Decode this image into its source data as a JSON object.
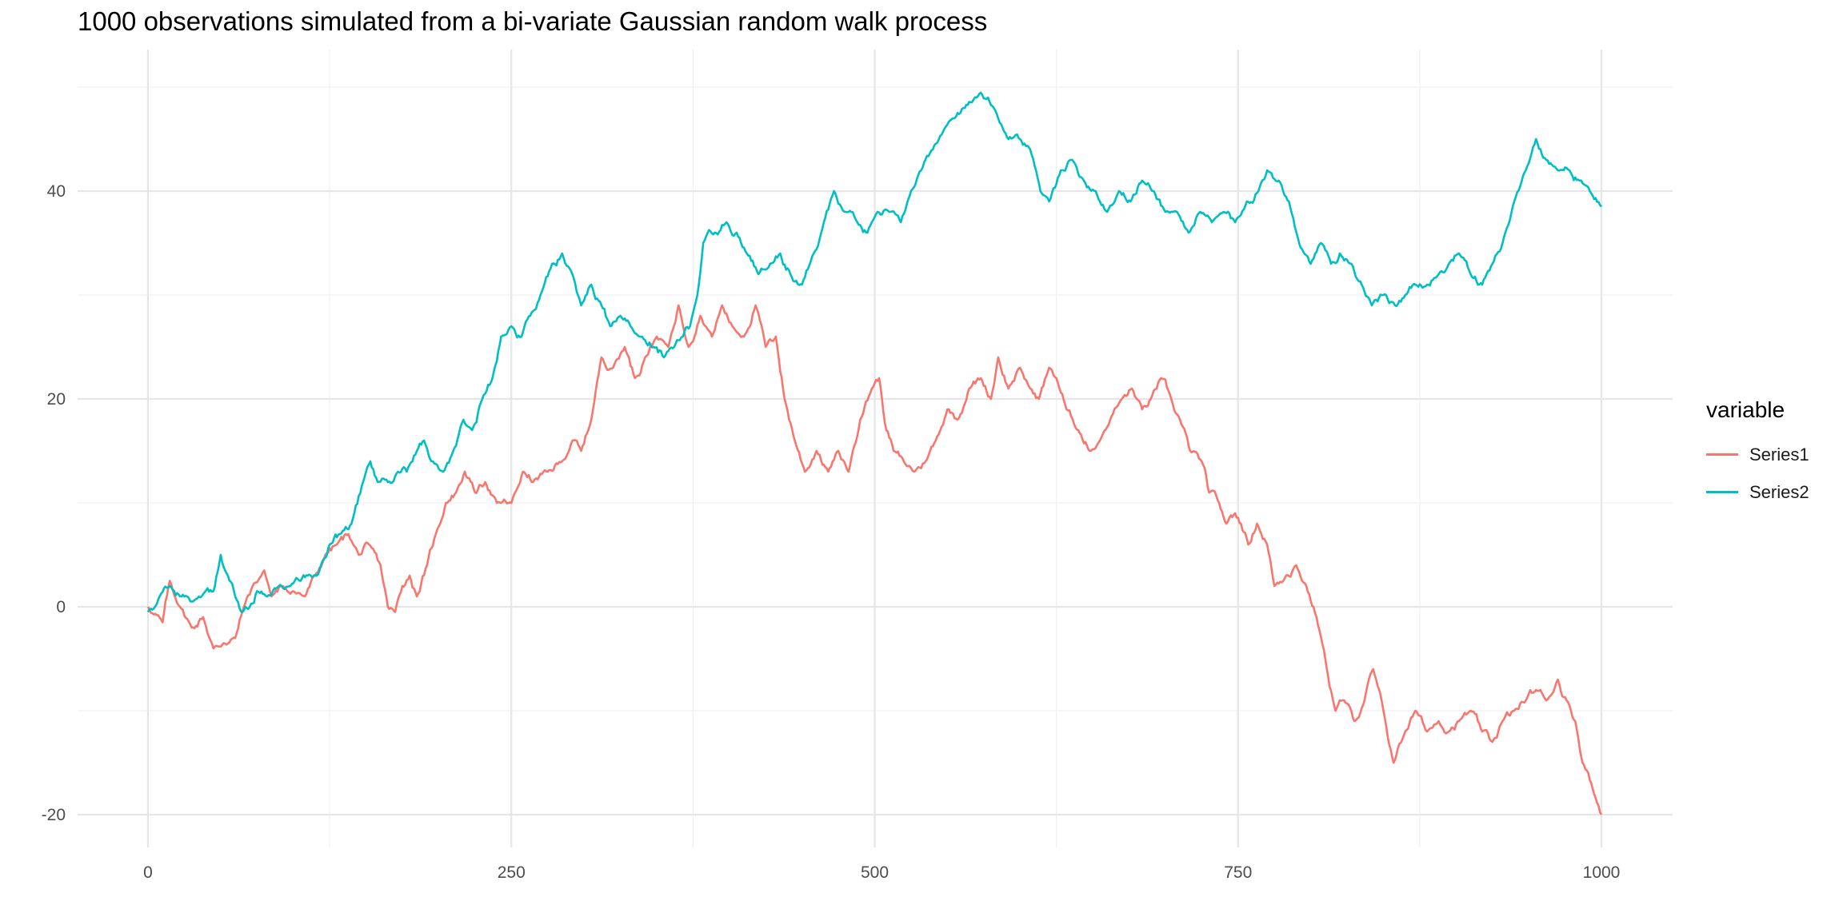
{
  "chart_data": {
    "type": "line",
    "title": "1000 observations simulated from a bi-variate Gaussian random walk process",
    "xlabel": "",
    "ylabel": "",
    "xlim": [
      0,
      1000
    ],
    "ylim": [
      -20,
      50
    ],
    "x_ticks": [
      0,
      250,
      500,
      750,
      1000
    ],
    "x_tick_labels": [
      "0",
      "250",
      "500",
      "750",
      "1000"
    ],
    "y_ticks": [
      -20,
      0,
      20,
      40
    ],
    "y_tick_labels": [
      "-20",
      "0",
      "20",
      "40"
    ],
    "grid": true,
    "legend": {
      "title": "variable",
      "position": "right"
    },
    "series": [
      {
        "name": "Series1",
        "color": "#F8766D",
        "points": [
          [
            0,
            0
          ],
          [
            10,
            -1.5
          ],
          [
            15,
            2.5
          ],
          [
            22,
            0
          ],
          [
            30,
            -2
          ],
          [
            38,
            -1
          ],
          [
            45,
            -4
          ],
          [
            52,
            -3.5
          ],
          [
            60,
            -3
          ],
          [
            66,
            0
          ],
          [
            72,
            2
          ],
          [
            80,
            3.5
          ],
          [
            85,
            1
          ],
          [
            92,
            2
          ],
          [
            100,
            1.5
          ],
          [
            108,
            1
          ],
          [
            115,
            3
          ],
          [
            122,
            5
          ],
          [
            130,
            6
          ],
          [
            138,
            7
          ],
          [
            145,
            5
          ],
          [
            152,
            6
          ],
          [
            160,
            4
          ],
          [
            165,
            0
          ],
          [
            170,
            -0.5
          ],
          [
            175,
            2
          ],
          [
            180,
            3
          ],
          [
            185,
            1
          ],
          [
            192,
            4
          ],
          [
            198,
            7
          ],
          [
            205,
            10
          ],
          [
            212,
            11
          ],
          [
            218,
            13
          ],
          [
            225,
            11
          ],
          [
            232,
            12
          ],
          [
            240,
            10
          ],
          [
            250,
            10
          ],
          [
            258,
            13
          ],
          [
            265,
            12
          ],
          [
            275,
            13
          ],
          [
            285,
            14
          ],
          [
            292,
            16
          ],
          [
            298,
            15
          ],
          [
            305,
            18
          ],
          [
            312,
            24
          ],
          [
            320,
            23
          ],
          [
            328,
            25
          ],
          [
            335,
            22
          ],
          [
            342,
            24
          ],
          [
            350,
            26
          ],
          [
            358,
            25
          ],
          [
            365,
            29
          ],
          [
            372,
            25
          ],
          [
            380,
            28
          ],
          [
            388,
            26
          ],
          [
            395,
            29
          ],
          [
            402,
            27
          ],
          [
            410,
            26
          ],
          [
            418,
            29
          ],
          [
            425,
            25
          ],
          [
            432,
            26
          ],
          [
            438,
            20
          ],
          [
            445,
            16
          ],
          [
            452,
            13
          ],
          [
            460,
            15
          ],
          [
            468,
            13
          ],
          [
            475,
            15
          ],
          [
            482,
            13
          ],
          [
            490,
            18
          ],
          [
            498,
            21
          ],
          [
            503,
            22
          ],
          [
            508,
            17
          ],
          [
            513,
            15
          ],
          [
            520,
            14
          ],
          [
            527,
            13
          ],
          [
            535,
            14
          ],
          [
            542,
            16
          ],
          [
            550,
            19
          ],
          [
            557,
            18
          ],
          [
            565,
            21
          ],
          [
            573,
            22
          ],
          [
            580,
            20
          ],
          [
            585,
            24
          ],
          [
            592,
            21
          ],
          [
            600,
            23
          ],
          [
            607,
            21
          ],
          [
            613,
            20
          ],
          [
            620,
            23
          ],
          [
            625,
            22
          ],
          [
            632,
            19
          ],
          [
            640,
            17
          ],
          [
            648,
            15
          ],
          [
            655,
            16
          ],
          [
            662,
            18
          ],
          [
            670,
            20
          ],
          [
            677,
            21
          ],
          [
            684,
            19
          ],
          [
            690,
            20
          ],
          [
            697,
            22
          ],
          [
            704,
            20
          ],
          [
            710,
            18
          ],
          [
            717,
            15
          ],
          [
            725,
            14
          ],
          [
            730,
            11
          ],
          [
            737,
            10
          ],
          [
            742,
            8
          ],
          [
            748,
            9
          ],
          [
            752,
            8
          ],
          [
            757,
            6
          ],
          [
            763,
            8
          ],
          [
            770,
            6
          ],
          [
            775,
            2
          ],
          [
            783,
            3
          ],
          [
            790,
            4
          ],
          [
            797,
            2
          ],
          [
            804,
            -1
          ],
          [
            810,
            -5
          ],
          [
            817,
            -10
          ],
          [
            823,
            -9
          ],
          [
            830,
            -11
          ],
          [
            837,
            -9
          ],
          [
            843,
            -6
          ],
          [
            850,
            -10
          ],
          [
            857,
            -15
          ],
          [
            865,
            -12
          ],
          [
            872,
            -10
          ],
          [
            880,
            -12
          ],
          [
            888,
            -11
          ],
          [
            895,
            -12
          ],
          [
            902,
            -11
          ],
          [
            910,
            -10
          ],
          [
            918,
            -12
          ],
          [
            925,
            -13
          ],
          [
            932,
            -11
          ],
          [
            940,
            -10
          ],
          [
            948,
            -9
          ],
          [
            955,
            -8
          ],
          [
            962,
            -9
          ],
          [
            970,
            -7
          ],
          [
            976,
            -9
          ],
          [
            982,
            -11
          ],
          [
            987,
            -15
          ],
          [
            991,
            -16
          ],
          [
            995,
            -18
          ],
          [
            1000,
            -20
          ]
        ]
      },
      {
        "name": "Series2",
        "color": "#00BFC4",
        "points": [
          [
            0,
            -0.5
          ],
          [
            8,
            1
          ],
          [
            15,
            2
          ],
          [
            22,
            1
          ],
          [
            30,
            0.5
          ],
          [
            37,
            1
          ],
          [
            45,
            1.5
          ],
          [
            50,
            5
          ],
          [
            55,
            3
          ],
          [
            60,
            1
          ],
          [
            65,
            -0.5
          ],
          [
            70,
            0
          ],
          [
            75,
            1.5
          ],
          [
            82,
            1
          ],
          [
            90,
            2
          ],
          [
            98,
            2
          ],
          [
            105,
            2.5
          ],
          [
            112,
            3
          ],
          [
            118,
            3.5
          ],
          [
            125,
            6
          ],
          [
            132,
            7
          ],
          [
            140,
            8
          ],
          [
            148,
            12
          ],
          [
            153,
            14
          ],
          [
            158,
            12
          ],
          [
            165,
            12
          ],
          [
            172,
            13
          ],
          [
            178,
            13
          ],
          [
            185,
            15
          ],
          [
            190,
            16
          ],
          [
            196,
            14
          ],
          [
            203,
            13
          ],
          [
            210,
            15
          ],
          [
            217,
            18
          ],
          [
            223,
            17
          ],
          [
            230,
            20
          ],
          [
            237,
            22
          ],
          [
            243,
            26
          ],
          [
            250,
            27
          ],
          [
            257,
            26
          ],
          [
            263,
            28
          ],
          [
            270,
            30
          ],
          [
            278,
            33
          ],
          [
            285,
            34
          ],
          [
            292,
            32
          ],
          [
            298,
            29
          ],
          [
            305,
            31
          ],
          [
            312,
            29
          ],
          [
            318,
            27
          ],
          [
            325,
            28
          ],
          [
            332,
            27
          ],
          [
            340,
            26
          ],
          [
            348,
            25
          ],
          [
            355,
            24
          ],
          [
            362,
            25
          ],
          [
            368,
            26
          ],
          [
            373,
            27
          ],
          [
            378,
            30
          ],
          [
            382,
            35
          ],
          [
            390,
            36
          ],
          [
            398,
            37
          ],
          [
            405,
            36
          ],
          [
            412,
            34
          ],
          [
            420,
            32
          ],
          [
            428,
            33
          ],
          [
            435,
            34
          ],
          [
            442,
            32
          ],
          [
            450,
            31
          ],
          [
            458,
            34
          ],
          [
            465,
            37
          ],
          [
            472,
            40
          ],
          [
            480,
            38
          ],
          [
            488,
            37
          ],
          [
            495,
            36
          ],
          [
            502,
            38
          ],
          [
            510,
            38
          ],
          [
            518,
            37
          ],
          [
            525,
            40
          ],
          [
            532,
            42
          ],
          [
            540,
            44
          ],
          [
            548,
            46
          ],
          [
            555,
            47
          ],
          [
            562,
            48
          ],
          [
            570,
            49
          ],
          [
            578,
            49
          ],
          [
            585,
            47
          ],
          [
            592,
            45
          ],
          [
            600,
            45
          ],
          [
            607,
            44
          ],
          [
            614,
            40
          ],
          [
            620,
            39
          ],
          [
            628,
            42
          ],
          [
            636,
            43
          ],
          [
            644,
            41
          ],
          [
            652,
            40
          ],
          [
            660,
            38
          ],
          [
            668,
            40
          ],
          [
            676,
            39
          ],
          [
            684,
            41
          ],
          [
            692,
            40
          ],
          [
            700,
            38
          ],
          [
            708,
            38
          ],
          [
            716,
            36
          ],
          [
            724,
            38
          ],
          [
            732,
            37
          ],
          [
            740,
            38
          ],
          [
            748,
            37
          ],
          [
            756,
            39
          ],
          [
            764,
            40
          ],
          [
            770,
            42
          ],
          [
            778,
            41
          ],
          [
            785,
            39
          ],
          [
            792,
            35
          ],
          [
            800,
            33
          ],
          [
            807,
            35
          ],
          [
            814,
            33
          ],
          [
            820,
            34
          ],
          [
            828,
            33
          ],
          [
            835,
            31
          ],
          [
            842,
            29
          ],
          [
            850,
            30
          ],
          [
            858,
            29
          ],
          [
            865,
            30
          ],
          [
            872,
            31
          ],
          [
            880,
            31
          ],
          [
            888,
            32
          ],
          [
            895,
            33
          ],
          [
            902,
            34
          ],
          [
            910,
            32
          ],
          [
            918,
            31
          ],
          [
            925,
            33
          ],
          [
            932,
            35
          ],
          [
            940,
            39
          ],
          [
            948,
            42
          ],
          [
            955,
            45
          ],
          [
            962,
            43
          ],
          [
            970,
            42
          ],
          [
            978,
            42
          ],
          [
            985,
            41
          ],
          [
            992,
            40
          ],
          [
            1000,
            38.5
          ]
        ]
      }
    ]
  }
}
